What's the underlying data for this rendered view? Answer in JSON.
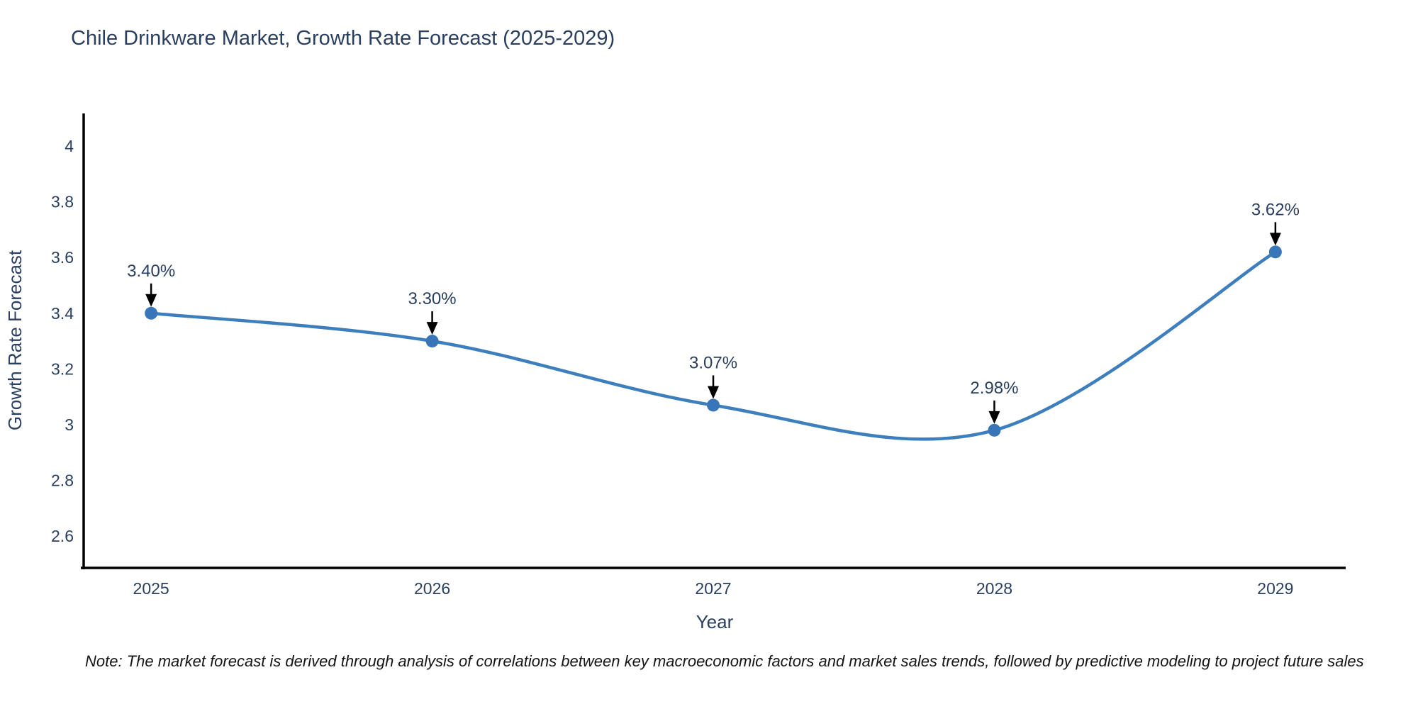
{
  "page": {
    "background": "#ffffff"
  },
  "chart_data": {
    "type": "line",
    "title": "Chile Drinkware Market, Growth Rate Forecast (2025-2029)",
    "xlabel": "Year",
    "ylabel": "Growth Rate Forecast",
    "x": [
      2025,
      2026,
      2027,
      2028,
      2029
    ],
    "series": [
      {
        "name": "Growth Rate Forecast",
        "values": [
          3.4,
          3.3,
          3.07,
          2.98,
          3.62
        ],
        "point_labels": [
          "3.40%",
          "3.30%",
          "3.07%",
          "2.98%",
          "3.62%"
        ],
        "line_color": "#3d7ebc",
        "marker_color": "#3876b8",
        "line_shape": "spline",
        "marker": "circle"
      }
    ],
    "yticks": [
      2.6,
      2.8,
      3,
      3.2,
      3.4,
      3.6,
      3.8,
      4
    ],
    "ytick_labels": [
      "2.6",
      "2.8",
      "3",
      "3.2",
      "3.4",
      "3.6",
      "3.8",
      "4"
    ],
    "xtick_labels": [
      "2025",
      "2026",
      "2027",
      "2028",
      "2029"
    ],
    "xlim": [
      2024.76,
      2029.25
    ],
    "ylim": [
      2.486,
      4.117
    ],
    "grid": false,
    "legend": "none",
    "annotation_arrow_color": "#000000",
    "axis_line_color": "#000000",
    "tick_label_color": "#2a3f5f"
  },
  "note": "Note: The market forecast is derived through analysis of correlations between key macroeconomic factors and market sales trends, followed by predictive modeling to project future sales"
}
